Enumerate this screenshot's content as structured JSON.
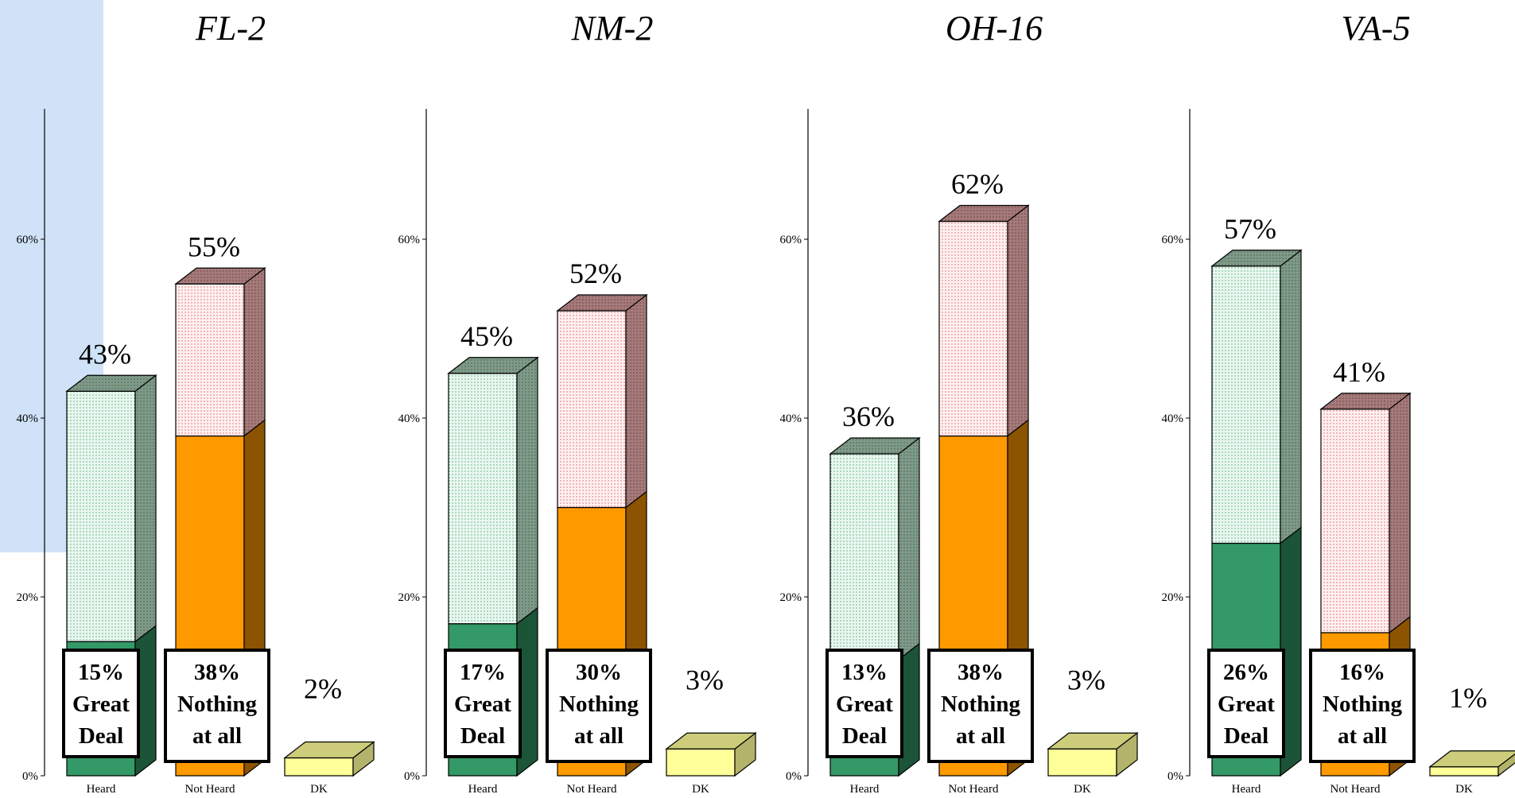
{
  "chart_data": [
    {
      "type": "bar",
      "title": "FL-2",
      "categories": [
        "Heard",
        "Not Heard",
        "DK"
      ],
      "values": [
        43,
        55,
        2
      ],
      "value_labels": [
        "43%",
        "55%",
        "2%"
      ],
      "sub_values": [
        15,
        38
      ],
      "sub_labels": [
        [
          "15%",
          "Great",
          "Deal"
        ],
        [
          "38%",
          "Nothing",
          "at all"
        ]
      ],
      "yticks": [
        "0%",
        "20%",
        "40%",
        "60%"
      ],
      "ylim": [
        0,
        75
      ]
    },
    {
      "type": "bar",
      "title": "NM-2",
      "categories": [
        "Heard",
        "Not Heard",
        "DK"
      ],
      "values": [
        45,
        52,
        3
      ],
      "value_labels": [
        "45%",
        "52%",
        "3%"
      ],
      "sub_values": [
        17,
        30
      ],
      "sub_labels": [
        [
          "17%",
          "Great",
          "Deal"
        ],
        [
          "30%",
          "Nothing",
          "at all"
        ]
      ],
      "yticks": [
        "0%",
        "20%",
        "40%",
        "60%"
      ],
      "ylim": [
        0,
        75
      ]
    },
    {
      "type": "bar",
      "title": "OH-16",
      "categories": [
        "Heard",
        "Not Heard",
        "DK"
      ],
      "values": [
        36,
        62,
        3
      ],
      "value_labels": [
        "36%",
        "62%",
        "3%"
      ],
      "sub_values": [
        13,
        38
      ],
      "sub_labels": [
        [
          "13%",
          "Great",
          "Deal"
        ],
        [
          "38%",
          "Nothing",
          "at all"
        ]
      ],
      "yticks": [
        "0%",
        "20%",
        "40%",
        "60%"
      ],
      "ylim": [
        0,
        75
      ]
    },
    {
      "type": "bar",
      "title": "VA-5",
      "categories": [
        "Heard",
        "Not Heard",
        "DK"
      ],
      "values": [
        57,
        41,
        1
      ],
      "value_labels": [
        "57%",
        "41%",
        "1%"
      ],
      "sub_values": [
        26,
        16
      ],
      "sub_labels": [
        [
          "26%",
          "Great",
          "Deal"
        ],
        [
          "16%",
          "Nothing",
          "at all"
        ]
      ],
      "yticks": [
        "0%",
        "20%",
        "40%",
        "60%"
      ],
      "ylim": [
        0,
        75
      ]
    }
  ],
  "colors": {
    "heard_total": "#e6f5ec",
    "heard_sub": "#339966",
    "notheard_total": "#fbe3e3",
    "notheard_sub": "#ff9900",
    "dk": "#ffff99"
  }
}
